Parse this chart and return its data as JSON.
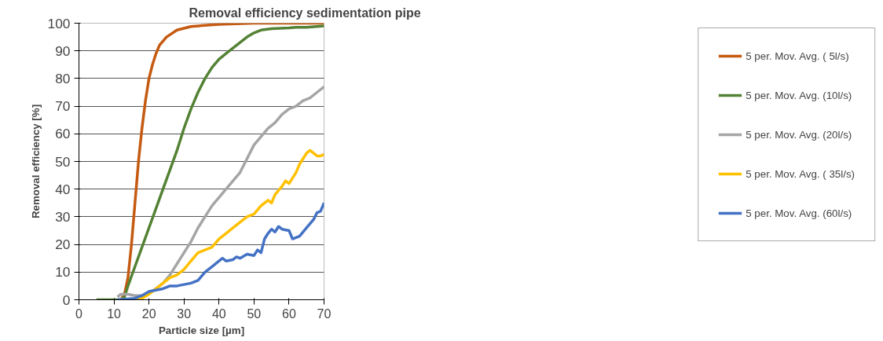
{
  "chart_data": {
    "type": "line",
    "title": "Removal efficiency sedimentation pipe",
    "xlabel": "Particle size [µm]",
    "ylabel": "Removal efficiency [%]",
    "xlim": [
      0,
      70
    ],
    "xticks": [
      0,
      10,
      20,
      30,
      40,
      50,
      60,
      70
    ],
    "ylim": [
      0,
      100
    ],
    "yticks": [
      0,
      10,
      20,
      30,
      40,
      50,
      60,
      70,
      80,
      90,
      100
    ],
    "grid": "y",
    "legend": "right",
    "marker": "none",
    "line_style": "solid",
    "series": [
      {
        "name": "5 per. Mov. Avg. ( 5l/s)",
        "color": "#c55a11",
        "x": [
          12,
          13,
          14,
          15,
          16,
          17,
          18,
          19,
          20,
          21,
          22,
          23,
          25,
          28,
          32,
          40,
          50,
          70
        ],
        "values": [
          0,
          2,
          8,
          20,
          35,
          50,
          62,
          72,
          80,
          85,
          89,
          92,
          95,
          97.5,
          98.8,
          99.6,
          100,
          100
        ]
      },
      {
        "name": "5 per. Mov. Avg. (10l/s)",
        "color": "#548235",
        "x": [
          5,
          12,
          13,
          14,
          16,
          18,
          20,
          22,
          24,
          26,
          28,
          30,
          32,
          34,
          36,
          38,
          40,
          42,
          44,
          46,
          48,
          50,
          52,
          55,
          60,
          62,
          65,
          70
        ],
        "values": [
          0,
          0,
          1,
          5,
          12,
          19,
          26,
          33,
          40,
          47,
          54,
          62,
          69,
          75,
          80,
          84,
          87,
          89,
          91,
          93,
          95,
          96.5,
          97.5,
          98,
          98.3,
          98.5,
          98.5,
          99
        ]
      },
      {
        "name": "5 per. Mov. Avg. (20l/s)",
        "color": "#a5a5a5",
        "x": [
          11,
          12,
          14,
          16,
          18,
          20,
          22,
          24,
          26,
          28,
          30,
          32,
          34,
          36,
          38,
          40,
          42,
          44,
          46,
          48,
          50,
          52,
          54,
          56,
          58,
          60,
          62,
          64,
          66,
          68,
          70
        ],
        "values": [
          1,
          2,
          2,
          1.5,
          1.5,
          2.5,
          4,
          6,
          9,
          13,
          17,
          21,
          26,
          30,
          34,
          37,
          40,
          43,
          46,
          51,
          56,
          59,
          62,
          64,
          67,
          69,
          70,
          72,
          73,
          75,
          77
        ]
      },
      {
        "name": "5 per. Mov. Avg. ( 35l/s)",
        "color": "#ffc000",
        "x": [
          12,
          18,
          20,
          22,
          24,
          26,
          28,
          30,
          32,
          34,
          36,
          38,
          40,
          42,
          44,
          46,
          48,
          50,
          52,
          54,
          55,
          56,
          58,
          59,
          60,
          61,
          62,
          63,
          64,
          65,
          66,
          67,
          68,
          69,
          70
        ],
        "values": [
          0,
          0.5,
          2,
          4,
          6,
          8,
          9,
          11,
          14,
          17,
          18,
          19,
          22,
          24,
          26,
          28,
          30,
          31,
          34,
          36,
          35,
          38,
          41,
          43,
          42,
          44,
          46,
          49,
          51,
          53,
          54,
          53,
          52,
          52,
          52.5
        ]
      },
      {
        "name": "5 per. Mov. Avg. (60l/s)",
        "color": "#4472c4",
        "x": [
          11,
          16,
          18,
          20,
          22,
          24,
          26,
          28,
          30,
          32,
          34,
          36,
          38,
          40,
          41,
          42,
          44,
          45,
          46,
          48,
          50,
          51,
          52,
          53,
          54,
          55,
          56,
          57,
          58,
          60,
          61,
          62,
          63,
          65,
          67,
          68,
          69,
          70
        ],
        "values": [
          0,
          0.5,
          1.5,
          3,
          3.5,
          4,
          5,
          5,
          5.5,
          6,
          7,
          10,
          12,
          14,
          15,
          14,
          14.5,
          15.5,
          15,
          16.5,
          16,
          18,
          17,
          22,
          24,
          25.5,
          24.5,
          26.5,
          25.5,
          25,
          22,
          22.5,
          23,
          26,
          29,
          31.5,
          32,
          35
        ]
      }
    ]
  }
}
